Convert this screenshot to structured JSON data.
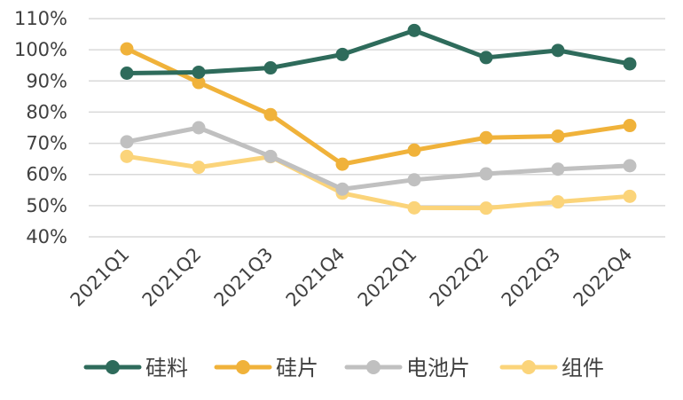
{
  "chart_data": {
    "type": "line",
    "title": "",
    "xlabel": "",
    "ylabel": "",
    "x": [
      "2021Q1",
      "2021Q2",
      "2021Q3",
      "2021Q4",
      "2022Q1",
      "2022Q2",
      "2022Q3",
      "2022Q4"
    ],
    "y_ticks": [
      "40%",
      "50%",
      "60%",
      "70%",
      "80%",
      "90%",
      "100%",
      "110%"
    ],
    "ylim": [
      40,
      110
    ],
    "grid": true,
    "legend_position": "bottom",
    "series": [
      {
        "name": "硅料",
        "color": "#2e6b5b",
        "values": [
          92.5,
          92.8,
          94.2,
          98.5,
          106.2,
          97.5,
          99.8,
          95.5
        ]
      },
      {
        "name": "硅片",
        "color": "#f0b23a",
        "values": [
          100.3,
          89.5,
          79.2,
          63.3,
          67.8,
          71.8,
          72.3,
          75.7
        ]
      },
      {
        "name": "电池片",
        "color": "#c0c0c0",
        "values": [
          70.5,
          75.0,
          65.8,
          55.3,
          58.3,
          60.2,
          61.7,
          62.8
        ]
      },
      {
        "name": "组件",
        "color": "#fbd47a",
        "values": [
          65.8,
          62.3,
          65.7,
          54.0,
          49.3,
          49.2,
          51.2,
          53.0
        ]
      }
    ]
  }
}
